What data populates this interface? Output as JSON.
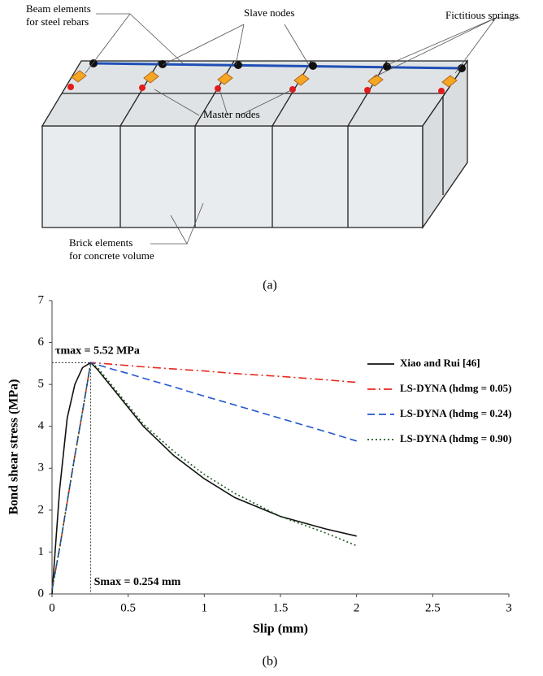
{
  "figure_a": {
    "labels": {
      "beam": [
        "Beam elements",
        "for steel rebars"
      ],
      "slave": [
        "Slave nodes"
      ],
      "springs": [
        "Fictitious springs"
      ],
      "master": [
        "Master nodes"
      ],
      "brick": [
        "Brick elements",
        "for concrete volume"
      ]
    },
    "caption": "(a)"
  },
  "chart_data": {
    "type": "line",
    "caption": "(b)",
    "x_label": "Slip (mm)",
    "y_label": "Bond shear stress (MPa)",
    "annotations": [
      "τmax = 5.52 MPa",
      "Smax = 0.254 mm"
    ],
    "xlim": [
      0,
      3
    ],
    "xticks": [
      0,
      0.5,
      1,
      1.5,
      2,
      2.5,
      3
    ],
    "ylim": [
      0,
      7
    ],
    "yticks": [
      0,
      1,
      2,
      3,
      4,
      5,
      6,
      7
    ],
    "x": [
      0,
      0.05,
      0.1,
      0.15,
      0.2,
      0.254,
      0.3,
      0.4,
      0.5,
      0.6,
      0.8,
      1.0,
      1.2,
      1.5,
      1.8,
      2.0
    ],
    "series": [
      {
        "name": "Xiao and Rui [46]",
        "color": "#111111",
        "line_style": "solid",
        "values": [
          0,
          2.5,
          4.2,
          5.0,
          5.4,
          5.52,
          5.35,
          4.9,
          4.45,
          4.0,
          3.3,
          2.75,
          2.3,
          1.85,
          1.55,
          1.38
        ]
      },
      {
        "name": "LS-DYNA (hdmg = 0.05)",
        "color": "#e8281e",
        "line_style": "dashdot",
        "values": [
          0.1,
          1.1,
          2.2,
          3.3,
          4.35,
          5.52,
          5.51,
          5.48,
          5.45,
          5.42,
          5.37,
          5.32,
          5.26,
          5.19,
          5.11,
          5.05
        ]
      },
      {
        "name": "LS-DYNA (hdmg = 0.24)",
        "color": "#2255d0",
        "line_style": "dashed",
        "values": [
          0.1,
          1.1,
          2.2,
          3.3,
          4.35,
          5.52,
          5.47,
          5.36,
          5.26,
          5.15,
          4.94,
          4.72,
          4.51,
          4.19,
          3.87,
          3.65
        ]
      },
      {
        "name": "LS-DYNA (hdmg = 0.90)",
        "color": "#1e5a1e",
        "line_style": "dotted",
        "values": [
          0.1,
          1.1,
          2.2,
          3.3,
          4.35,
          5.52,
          5.4,
          4.95,
          4.5,
          4.05,
          3.4,
          2.85,
          2.4,
          1.85,
          1.45,
          1.15
        ]
      }
    ]
  }
}
